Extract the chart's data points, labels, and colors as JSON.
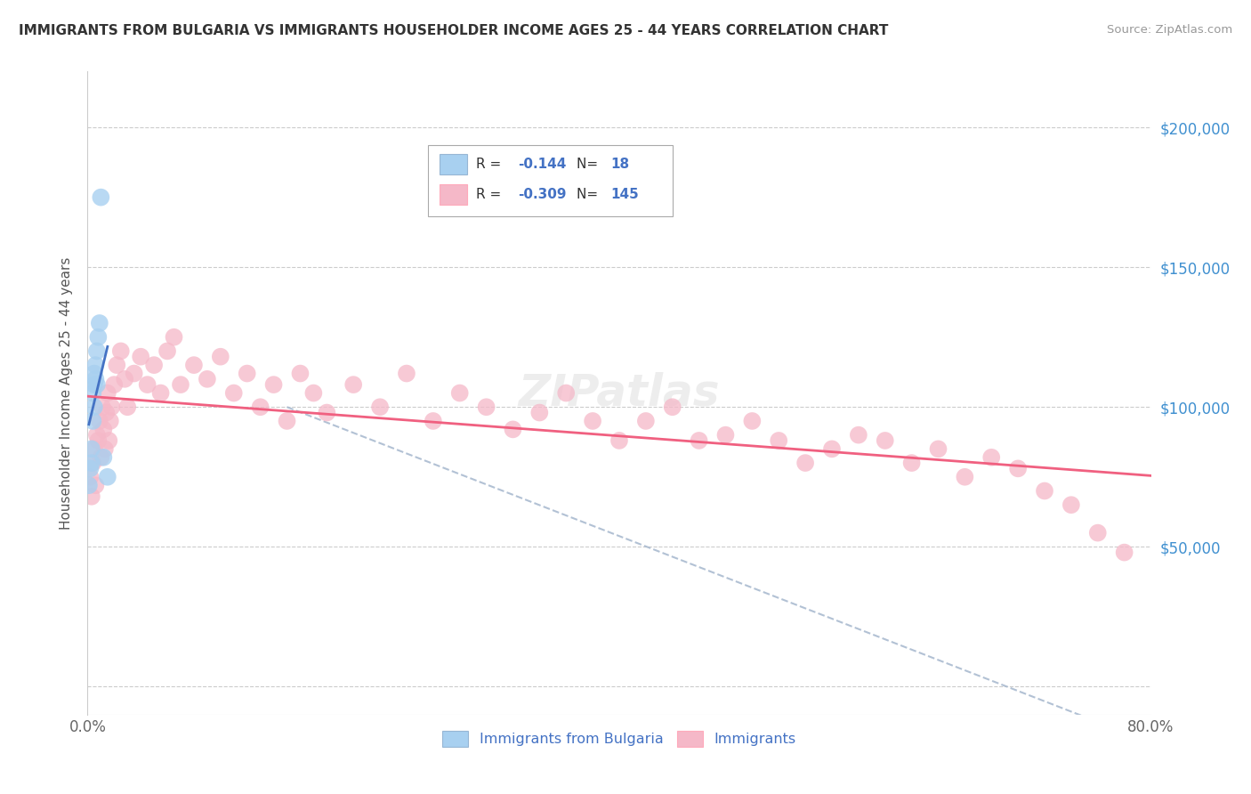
{
  "title": "IMMIGRANTS FROM BULGARIA VS IMMIGRANTS HOUSEHOLDER INCOME AGES 25 - 44 YEARS CORRELATION CHART",
  "source": "Source: ZipAtlas.com",
  "ylabel": "Householder Income Ages 25 - 44 years",
  "r_blue": -0.144,
  "n_blue": 18,
  "r_pink": -0.309,
  "n_pink": 145,
  "legend_label_blue": "Immigrants from Bulgaria",
  "legend_label_pink": "Immigrants",
  "blue_color": "#A8D0F0",
  "pink_color": "#F5B8C8",
  "blue_line_color": "#4472C4",
  "pink_line_color": "#F06080",
  "dashed_line_color": "#AABBD0",
  "y_ticks": [
    0,
    50000,
    100000,
    150000,
    200000
  ],
  "y_tick_labels": [
    "",
    "$50,000",
    "$100,000",
    "$150,000",
    "$200,000"
  ],
  "xlim": [
    0.0,
    0.8
  ],
  "ylim": [
    -10000,
    220000
  ],
  "blue_scatter_x": [
    0.001,
    0.002,
    0.003,
    0.003,
    0.004,
    0.004,
    0.005,
    0.005,
    0.005,
    0.006,
    0.006,
    0.007,
    0.007,
    0.008,
    0.009,
    0.01,
    0.012,
    0.015
  ],
  "blue_scatter_y": [
    72000,
    78000,
    80000,
    85000,
    95000,
    105000,
    100000,
    108000,
    112000,
    110000,
    115000,
    108000,
    120000,
    125000,
    130000,
    175000,
    82000,
    75000
  ],
  "pink_scatter_x": [
    0.002,
    0.003,
    0.004,
    0.005,
    0.006,
    0.007,
    0.008,
    0.009,
    0.01,
    0.011,
    0.012,
    0.013,
    0.014,
    0.015,
    0.016,
    0.017,
    0.018,
    0.02,
    0.022,
    0.025,
    0.028,
    0.03,
    0.035,
    0.04,
    0.045,
    0.05,
    0.055,
    0.06,
    0.065,
    0.07,
    0.08,
    0.09,
    0.1,
    0.11,
    0.12,
    0.13,
    0.14,
    0.15,
    0.16,
    0.17,
    0.18,
    0.2,
    0.22,
    0.24,
    0.26,
    0.28,
    0.3,
    0.32,
    0.34,
    0.36,
    0.38,
    0.4,
    0.42,
    0.44,
    0.46,
    0.48,
    0.5,
    0.52,
    0.54,
    0.56,
    0.58,
    0.6,
    0.62,
    0.64,
    0.66,
    0.68,
    0.7,
    0.72,
    0.74,
    0.76,
    0.78
  ],
  "pink_scatter_y": [
    75000,
    68000,
    80000,
    85000,
    72000,
    90000,
    88000,
    95000,
    82000,
    100000,
    92000,
    85000,
    98000,
    105000,
    88000,
    95000,
    100000,
    108000,
    115000,
    120000,
    110000,
    100000,
    112000,
    118000,
    108000,
    115000,
    105000,
    120000,
    125000,
    108000,
    115000,
    110000,
    118000,
    105000,
    112000,
    100000,
    108000,
    95000,
    112000,
    105000,
    98000,
    108000,
    100000,
    112000,
    95000,
    105000,
    100000,
    92000,
    98000,
    105000,
    95000,
    88000,
    95000,
    100000,
    88000,
    90000,
    95000,
    88000,
    80000,
    85000,
    90000,
    88000,
    80000,
    85000,
    75000,
    82000,
    78000,
    70000,
    65000,
    55000,
    48000
  ]
}
